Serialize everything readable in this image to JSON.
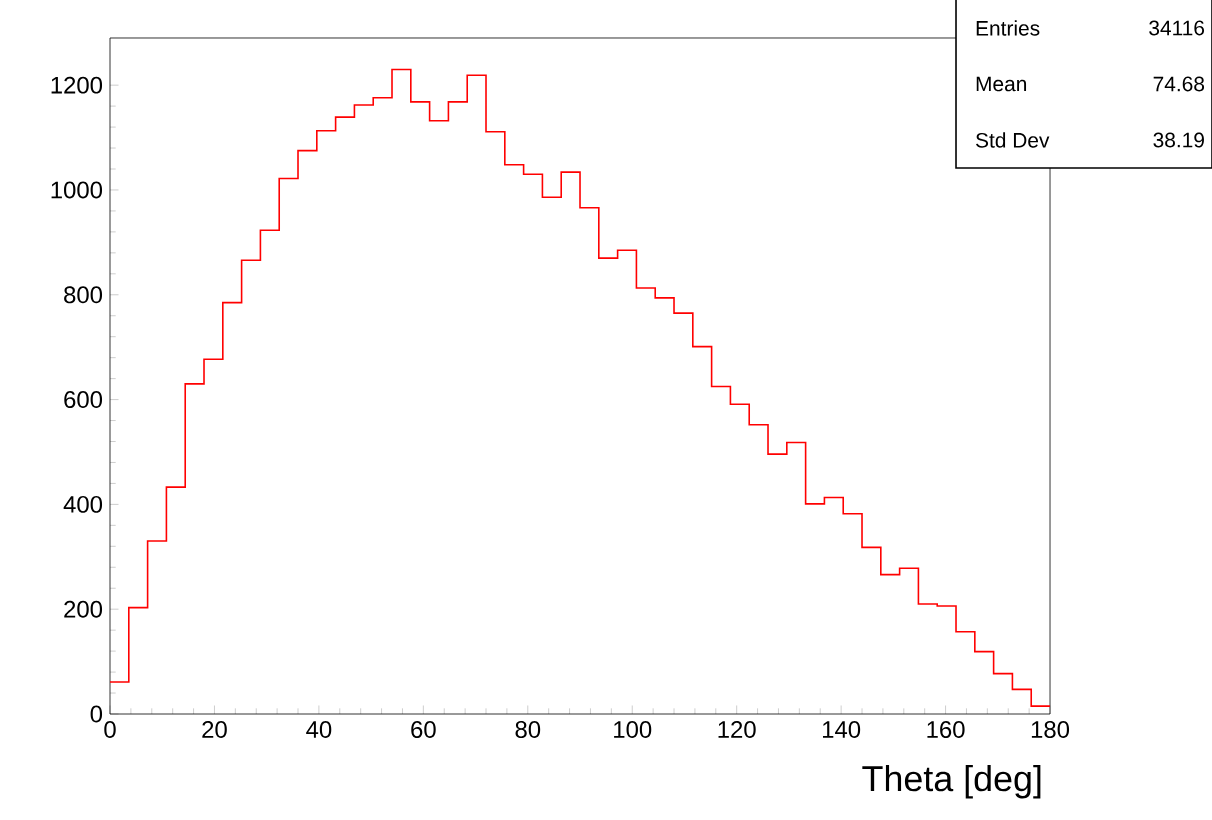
{
  "chart_data": {
    "type": "histogram",
    "xlabel": "Theta [deg]",
    "bins": [
      0,
      3.6,
      7.2,
      10.8,
      14.4,
      18,
      21.6,
      25.2,
      28.8,
      32.4,
      36,
      39.6,
      43.2,
      46.8,
      50.4,
      54,
      57.6,
      61.2,
      64.8,
      68.4,
      72,
      75.6,
      79.2,
      82.8,
      86.4,
      90,
      93.6,
      97.2,
      100.8,
      104.4,
      108,
      111.6,
      115.2,
      118.8,
      122.4,
      126,
      129.6,
      133.2,
      136.8,
      140.4,
      144,
      147.6,
      151.2,
      154.8,
      158.4,
      162,
      165.6,
      169.2,
      172.8,
      176.4,
      180
    ],
    "values": [
      61,
      203,
      330,
      433,
      630,
      677,
      785,
      866,
      923,
      1022,
      1075,
      1113,
      1139,
      1162,
      1176,
      1230,
      1168,
      1132,
      1168,
      1219,
      1111,
      1048,
      1030,
      986,
      1034,
      966,
      870,
      885,
      813,
      794,
      765,
      701,
      625,
      591,
      552,
      496,
      518,
      401,
      413,
      382,
      318,
      266,
      278,
      210,
      206,
      157,
      119,
      77,
      47,
      15
    ],
    "color": "#ff0000",
    "xlim": [
      0,
      180
    ],
    "xticks": [
      0,
      20,
      40,
      60,
      80,
      100,
      120,
      140,
      160,
      180
    ],
    "ylim": [
      0,
      1290
    ],
    "yticks": [
      0,
      200,
      400,
      600,
      800,
      1000,
      1200
    ],
    "annotations": [
      "Entries",
      "34116",
      "Mean",
      "74.68",
      "Std Dev",
      "38.19"
    ]
  }
}
